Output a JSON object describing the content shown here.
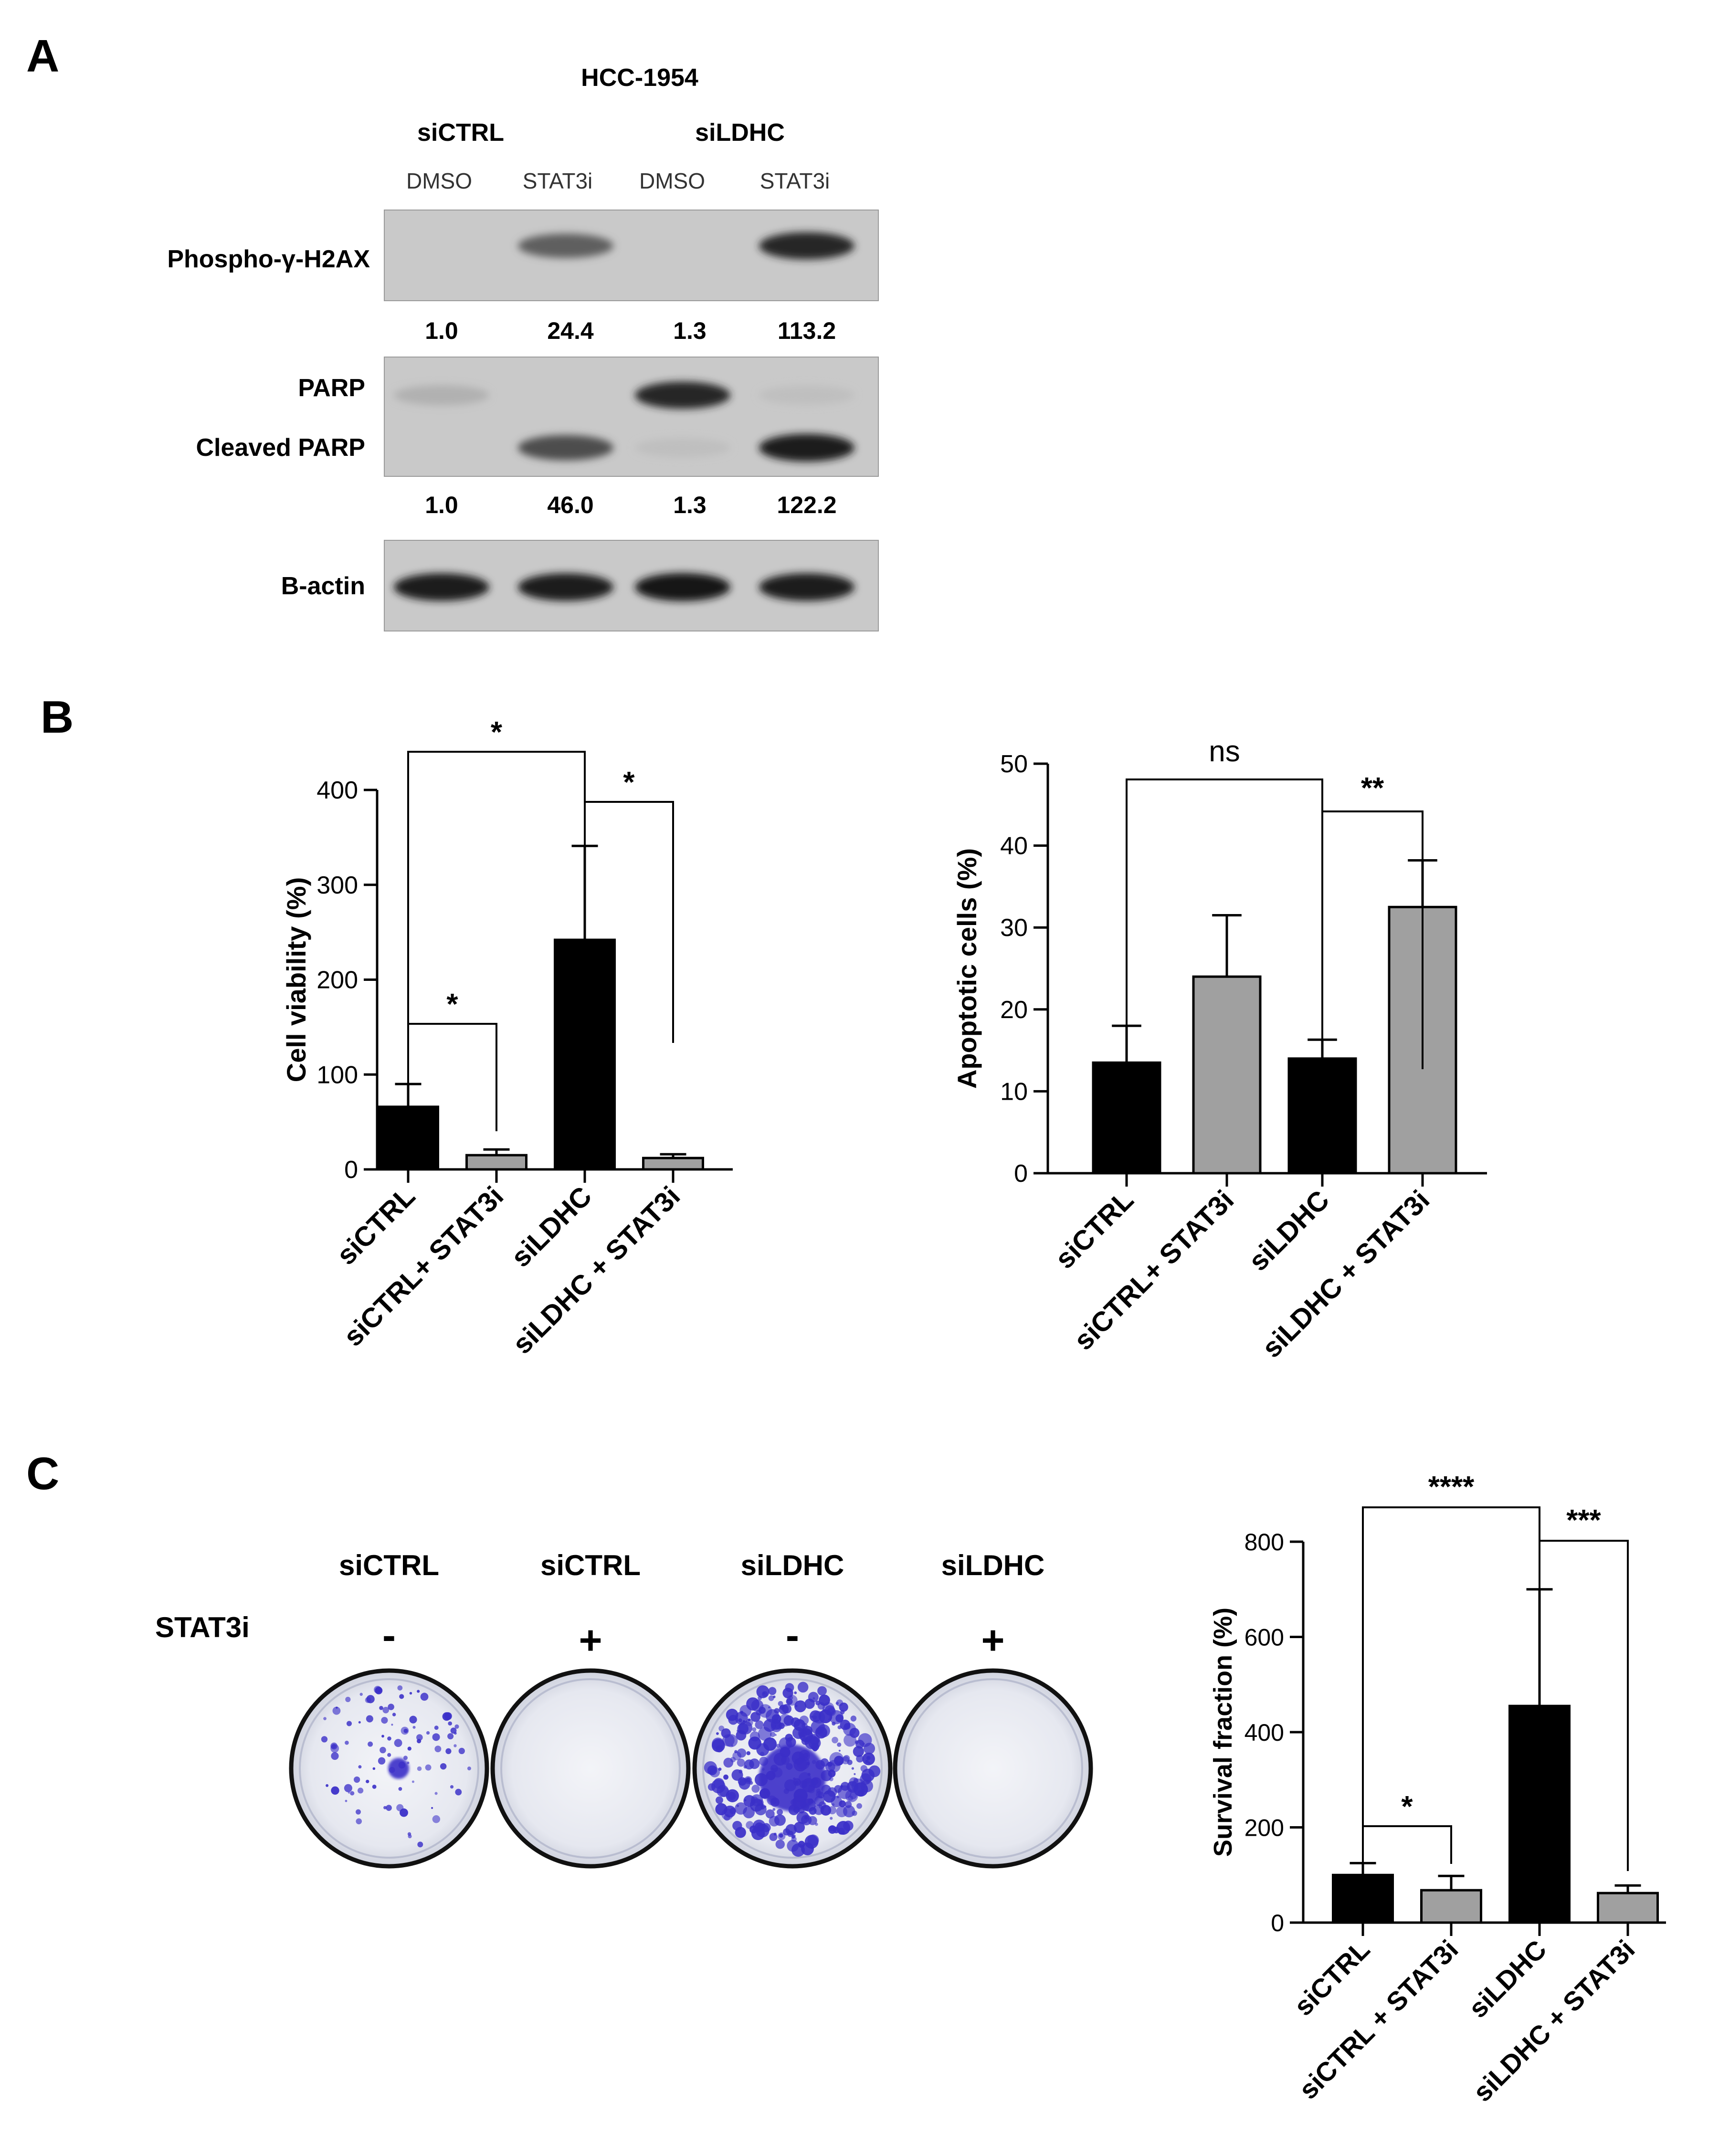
{
  "panel_a": {
    "letter": "A",
    "cell_line": "HCC-1954",
    "groups": [
      "siCTRL",
      "siLDHC"
    ],
    "treatments": [
      "DMSO",
      "STAT3i",
      "DMSO",
      "STAT3i"
    ],
    "blots": [
      {
        "label": "Phospho-γ-H2AX",
        "band_intensity": [
          0.0,
          0.55,
          0.0,
          0.85
        ],
        "quant": [
          "1.0",
          "24.4",
          "1.3",
          "113.2"
        ]
      },
      {
        "labels": [
          "PARP",
          "Cleaved PARP"
        ],
        "parp_intensity": [
          0.12,
          0.0,
          0.85,
          0.05
        ],
        "cleaved_intensity": [
          0.0,
          0.65,
          0.05,
          0.9
        ],
        "quant": [
          "1.0",
          "46.0",
          "1.3",
          "122.2"
        ]
      },
      {
        "label": "B-actin",
        "band_intensity": [
          0.9,
          0.9,
          0.95,
          0.9
        ]
      }
    ]
  },
  "panel_b": {
    "letter": "B"
  },
  "panel_c": {
    "letter": "C",
    "groups": [
      "siCTRL",
      "siCTRL",
      "siLDHC",
      "siLDHC"
    ],
    "treatment_label": "STAT3i",
    "signs": [
      "-",
      "+",
      "-",
      "+"
    ],
    "dish_colony_density": [
      0.25,
      0.0,
      0.9,
      0.0
    ]
  },
  "colors": {
    "black_bar": "#000000",
    "gray_bar": "#a0a0a0",
    "colony": "#3a2fc8",
    "blot_bg": "#c9c9c9"
  },
  "chart_data": [
    {
      "type": "bar",
      "ylabel": "Cell viability (%)",
      "categories": [
        "siCTRL",
        "siCTRL+ STAT3i",
        "siLDHC",
        "siLDHC + STAT3i"
      ],
      "values": [
        66,
        15,
        242,
        12
      ],
      "errors": [
        24,
        6,
        99,
        4
      ],
      "bar_colors": [
        "#000000",
        "#a0a0a0",
        "#000000",
        "#a0a0a0"
      ],
      "ylim": [
        0,
        400
      ],
      "yticks": [
        "0",
        "100",
        "200",
        "300",
        "400"
      ],
      "significance": [
        {
          "between": [
            0,
            2
          ],
          "label": "*"
        },
        {
          "between": [
            2,
            3
          ],
          "label": "*"
        },
        {
          "between": [
            0,
            1
          ],
          "label": "*"
        }
      ]
    },
    {
      "type": "bar",
      "ylabel": "Apoptotic cells (%)",
      "categories": [
        "siCTRL",
        "siCTRL+ STAT3i",
        "siLDHC",
        "siLDHC + STAT3i"
      ],
      "values": [
        13.5,
        24,
        14,
        32.5
      ],
      "errors": [
        4.5,
        7.5,
        2.3,
        5.7
      ],
      "bar_colors": [
        "#000000",
        "#a0a0a0",
        "#000000",
        "#a0a0a0"
      ],
      "ylim": [
        0,
        50
      ],
      "yticks": [
        "0",
        "10",
        "20",
        "30",
        "40",
        "50"
      ],
      "significance": [
        {
          "between": [
            0,
            2
          ],
          "label": "ns"
        },
        {
          "between": [
            2,
            3
          ],
          "label": "**"
        }
      ]
    },
    {
      "type": "bar",
      "ylabel": "Survival fraction (%)",
      "categories": [
        "siCTRL",
        "siCTRL + STAT3i",
        "siLDHC",
        "siLDHC + STAT3i"
      ],
      "values": [
        100,
        68,
        455,
        62
      ],
      "errors": [
        25,
        30,
        245,
        16
      ],
      "bar_colors": [
        "#000000",
        "#a0a0a0",
        "#000000",
        "#a0a0a0"
      ],
      "ylim": [
        0,
        800
      ],
      "yticks": [
        "0",
        "200",
        "400",
        "600",
        "800"
      ],
      "significance": [
        {
          "between": [
            0,
            2
          ],
          "label": "****"
        },
        {
          "between": [
            2,
            3
          ],
          "label": "***"
        },
        {
          "between": [
            0,
            1
          ],
          "label": "*"
        }
      ]
    }
  ]
}
